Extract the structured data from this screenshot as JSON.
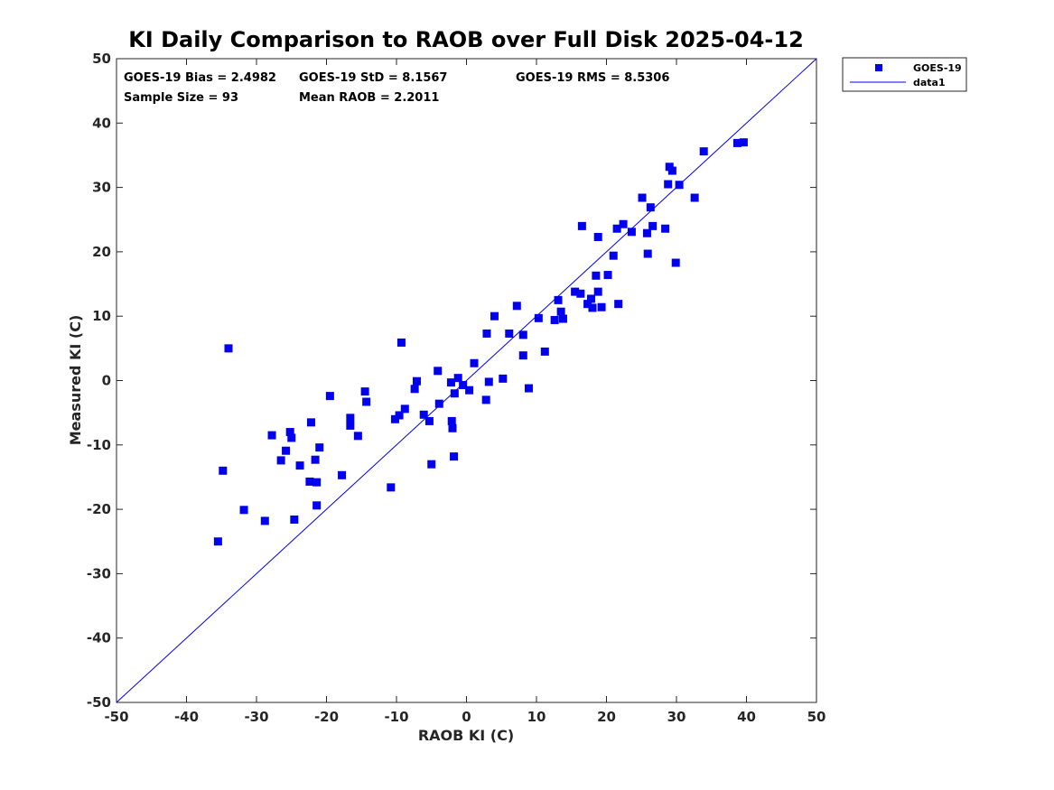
{
  "chart_data": {
    "type": "scatter",
    "title": "KI Daily Comparison to RAOB over Full Disk 2025-04-12",
    "xlabel": "RAOB KI (C)",
    "ylabel": "Measured KI (C)",
    "xlim": [
      -50,
      50
    ],
    "ylim": [
      -50,
      50
    ],
    "xticks": [
      "-50",
      "-40",
      "-30",
      "-20",
      "-10",
      "0",
      "10",
      "20",
      "30",
      "40",
      "50"
    ],
    "yticks": [
      "50",
      "40",
      "30",
      "20",
      "10",
      "0",
      "-10",
      "-20",
      "-30",
      "-40",
      "-50"
    ],
    "grid": false,
    "legend_position": "outside-top-right",
    "stats": [
      "GOES-19 Bias = 2.4982",
      "GOES-19 StD = 8.1567",
      "GOES-19 RMS = 8.5306",
      "Sample Size = 93",
      "Mean RAOB = 2.2011"
    ],
    "legend": [
      "GOES-19",
      "data1"
    ],
    "series": [
      {
        "name": "GOES-19",
        "type": "scatter",
        "marker": "square",
        "color": "#0000ee",
        "points": [
          [
            -34,
            5
          ],
          [
            -35.5,
            -25
          ],
          [
            -34.8,
            -14
          ],
          [
            -31.8,
            -20.1
          ],
          [
            -28.8,
            -21.8
          ],
          [
            -27.8,
            -8.5
          ],
          [
            -26.5,
            -12.4
          ],
          [
            -25.8,
            -10.9
          ],
          [
            -25.2,
            -8
          ],
          [
            -25,
            -8.9
          ],
          [
            -24.6,
            -21.6
          ],
          [
            -23.8,
            -13.2
          ],
          [
            -22.4,
            -15.7
          ],
          [
            -22.2,
            -6.5
          ],
          [
            -21.6,
            -12.3
          ],
          [
            -21.4,
            -15.8
          ],
          [
            -21.4,
            -19.4
          ],
          [
            -21,
            -10.4
          ],
          [
            -19.5,
            -2.4
          ],
          [
            -17.8,
            -14.7
          ],
          [
            -16.6,
            -5.8
          ],
          [
            -16.6,
            -7
          ],
          [
            -15.5,
            -8.6
          ],
          [
            -14.5,
            -1.7
          ],
          [
            -14.3,
            -3.3
          ],
          [
            -10.8,
            -16.6
          ],
          [
            -10.2,
            -6
          ],
          [
            -9.6,
            -5.4
          ],
          [
            -9.3,
            5.9
          ],
          [
            -8.8,
            -4.4
          ],
          [
            -7.4,
            -1.3
          ],
          [
            -7.1,
            -0.1
          ],
          [
            -6.1,
            -5.3
          ],
          [
            -5.3,
            -6.3
          ],
          [
            -5,
            -13
          ],
          [
            -4.1,
            1.5
          ],
          [
            -3.9,
            -3.6
          ],
          [
            -2.2,
            -0.3
          ],
          [
            -2.1,
            -6.3
          ],
          [
            -2,
            -7.4
          ],
          [
            -1.8,
            -11.8
          ],
          [
            -1.7,
            -2
          ],
          [
            -1.2,
            0.4
          ],
          [
            -0.5,
            -0.7
          ],
          [
            0.4,
            -1.5
          ],
          [
            1.1,
            2.7
          ],
          [
            2.8,
            -3
          ],
          [
            2.9,
            7.3
          ],
          [
            3.2,
            -0.2
          ],
          [
            4,
            10
          ],
          [
            5.2,
            0.3
          ],
          [
            6.1,
            7.3
          ],
          [
            7.2,
            11.6
          ],
          [
            8.1,
            7.1
          ],
          [
            8.1,
            3.9
          ],
          [
            8.9,
            -1.2
          ],
          [
            10.3,
            9.7
          ],
          [
            11.2,
            4.5
          ],
          [
            12.6,
            9.4
          ],
          [
            13.1,
            12.5
          ],
          [
            13.5,
            10.7
          ],
          [
            13.8,
            9.6
          ],
          [
            15.5,
            13.8
          ],
          [
            16.3,
            13.5
          ],
          [
            16.5,
            24
          ],
          [
            17.3,
            11.9
          ],
          [
            17.8,
            12.7
          ],
          [
            18,
            11.3
          ],
          [
            18.5,
            16.3
          ],
          [
            18.8,
            13.8
          ],
          [
            18.8,
            22.3
          ],
          [
            19.3,
            11.4
          ],
          [
            20.2,
            16.4
          ],
          [
            21,
            19.4
          ],
          [
            21.5,
            23.6
          ],
          [
            21.7,
            11.9
          ],
          [
            22.4,
            24.3
          ],
          [
            23.6,
            23.1
          ],
          [
            25.1,
            28.4
          ],
          [
            25.8,
            22.9
          ],
          [
            25.9,
            19.7
          ],
          [
            26.3,
            26.9
          ],
          [
            26.6,
            24
          ],
          [
            28.4,
            23.6
          ],
          [
            28.8,
            30.5
          ],
          [
            29,
            33.2
          ],
          [
            29.4,
            32.6
          ],
          [
            29.9,
            18.3
          ],
          [
            30.4,
            30.4
          ],
          [
            32.6,
            28.4
          ],
          [
            33.9,
            35.6
          ],
          [
            38.7,
            36.9
          ],
          [
            39.6,
            37
          ]
        ]
      },
      {
        "name": "data1",
        "type": "line",
        "color": "#0000ee",
        "x": [
          -50,
          50
        ],
        "y": [
          -50,
          50
        ]
      }
    ]
  }
}
